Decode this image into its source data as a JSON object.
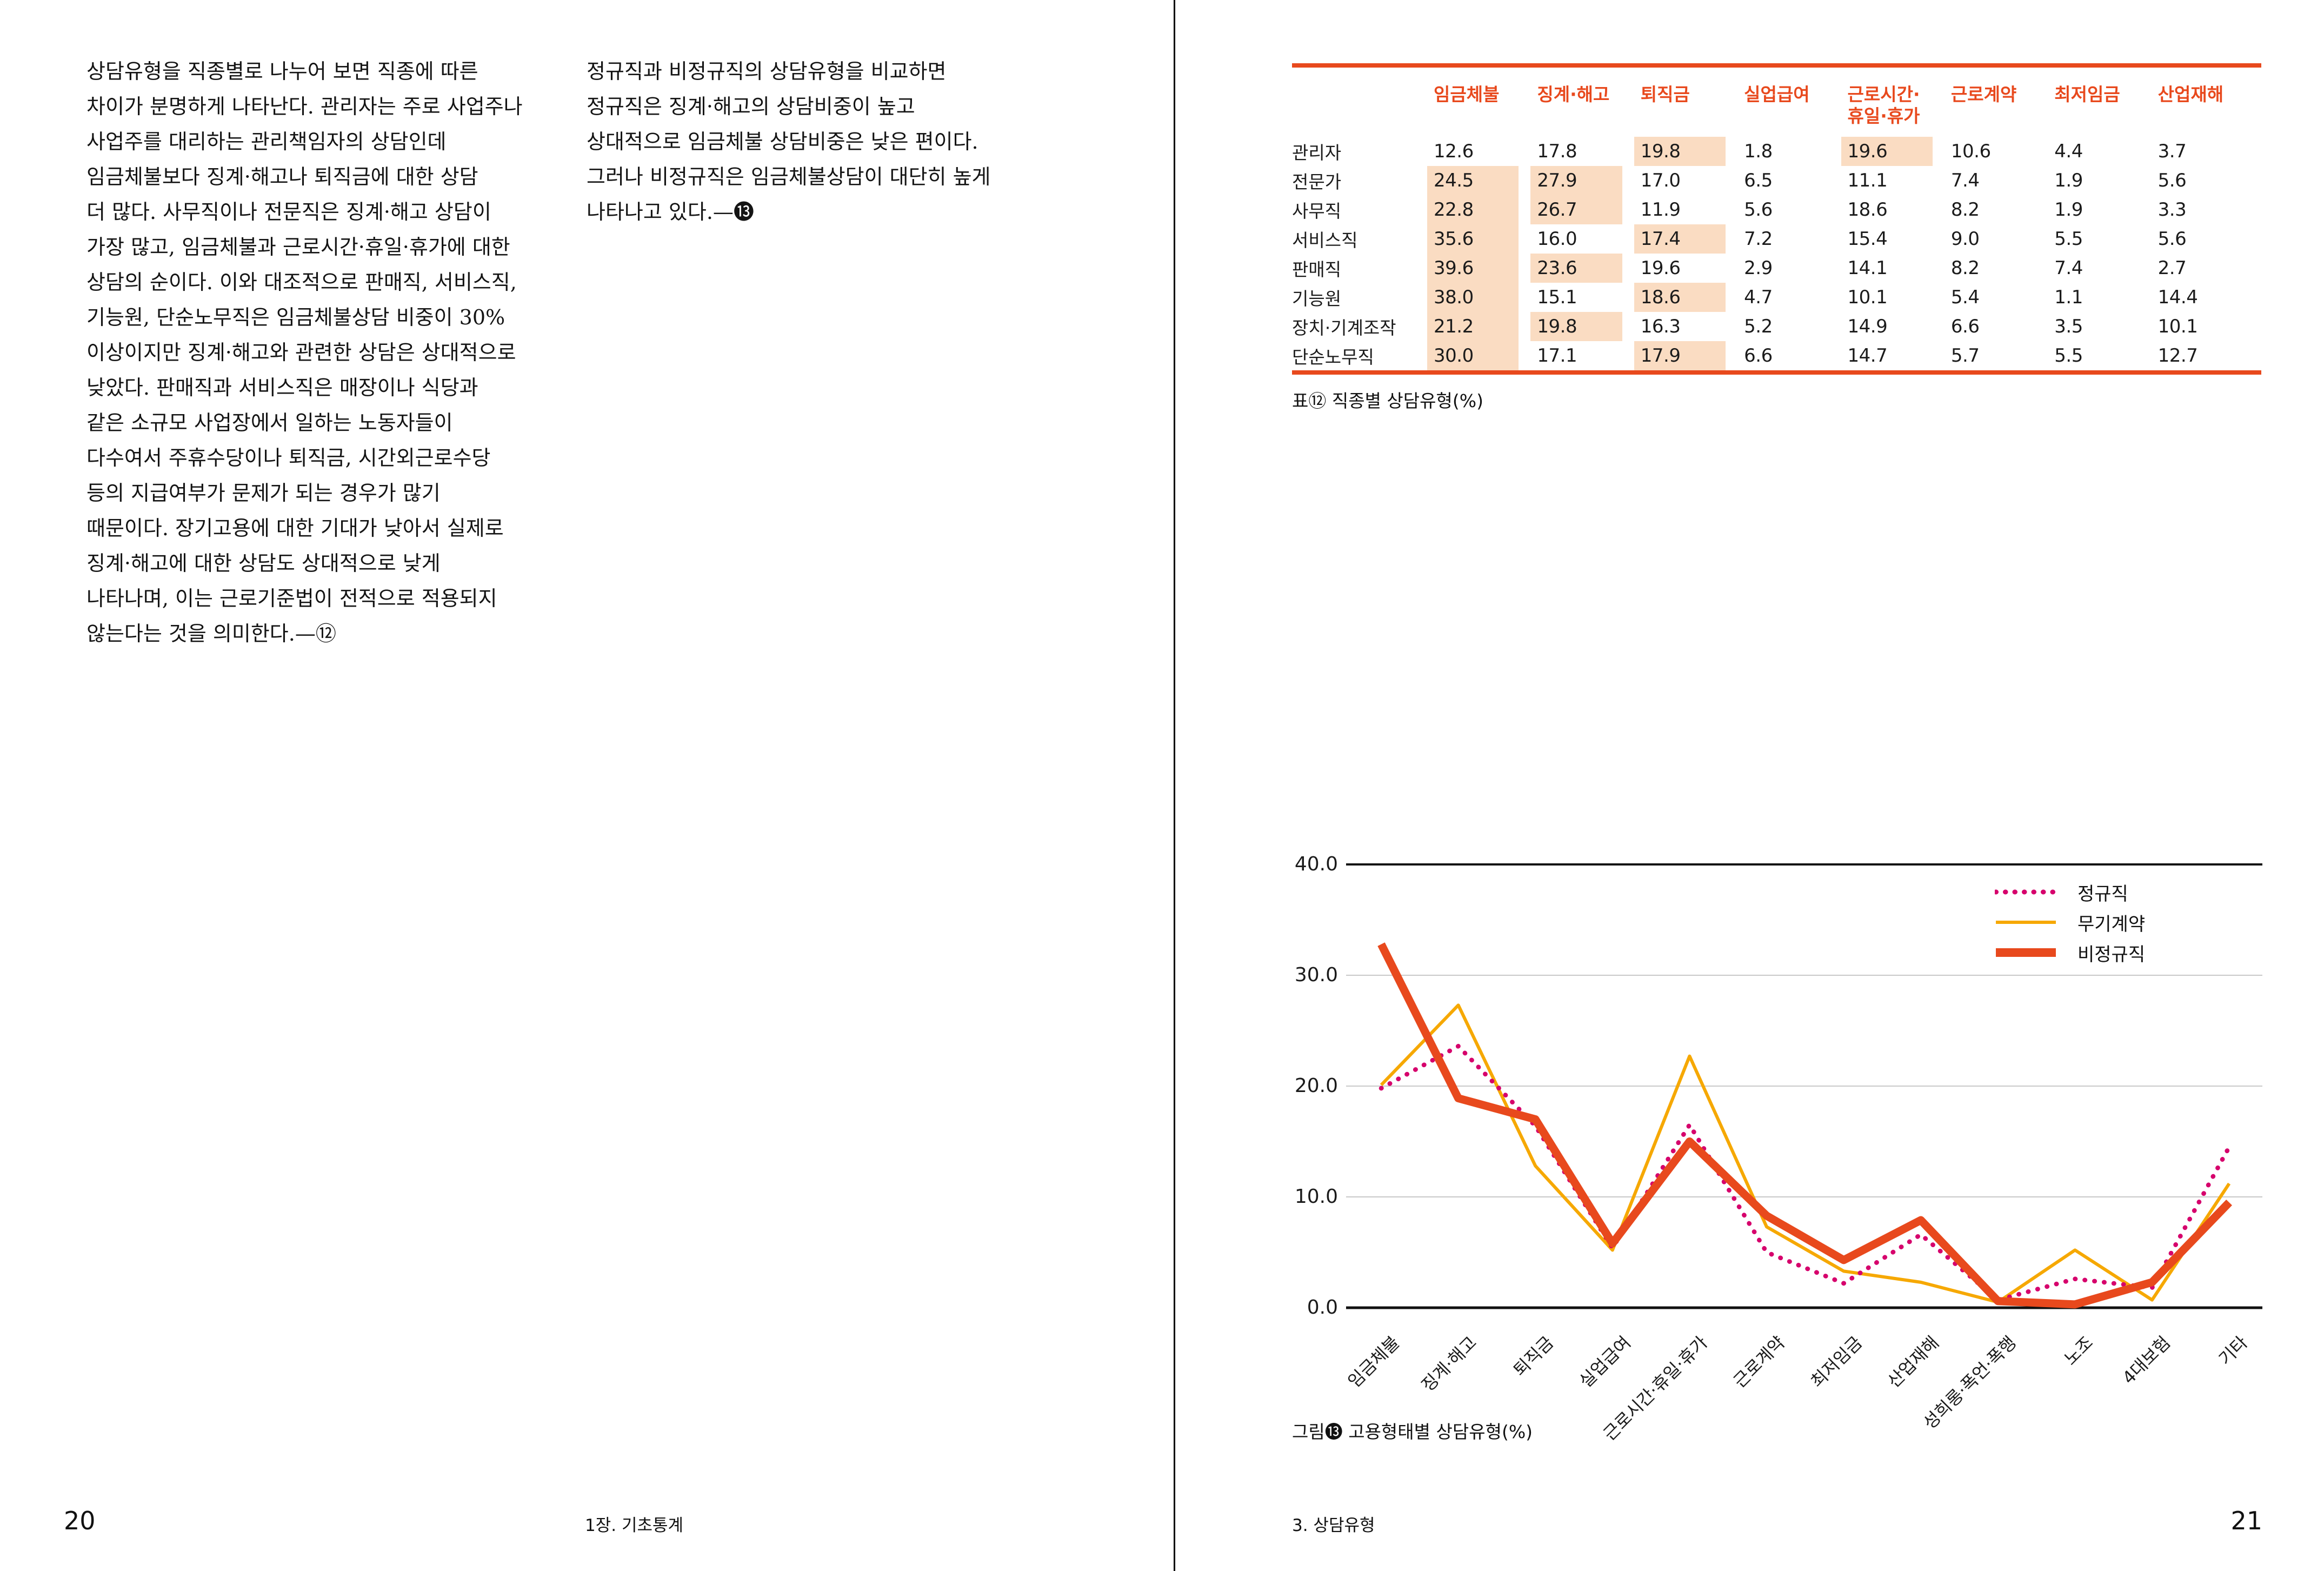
{
  "colors": {
    "accent": "#E8491D",
    "table_highlight": "#FADCC2",
    "grid_gray": "#C9C9C9",
    "axis_black": "#111111"
  },
  "page_left": {
    "page_number": "20",
    "footer": "1장. 기초통계",
    "col1_lines": [
      "상담유형을 직종별로 나누어 보면 직종에 따른",
      "차이가 분명하게 나타난다. 관리자는 주로 사업주나",
      "사업주를 대리하는 관리책임자의 상담인데",
      "임금체불보다 징계·해고나 퇴직금에 대한 상담",
      "더 많다. 사무직이나 전문직은 징계·해고 상담이",
      "가장 많고, 임금체불과 근로시간·휴일·휴가에 대한",
      "상담의 순이다. 이와 대조적으로 판매직, 서비스직,",
      "기능원, 단순노무직은 임금체불상담 비중이 30%",
      "이상이지만 징계·해고와 관련한 상담은 상대적으로",
      "낮았다. 판매직과 서비스직은 매장이나 식당과",
      "같은 소규모 사업장에서 일하는 노동자들이",
      "다수여서 주휴수당이나 퇴직금, 시간외근로수당",
      "등의 지급여부가 문제가 되는 경우가 많기",
      "때문이다. 장기고용에 대한 기대가 낮아서 실제로",
      "징계·해고에 대한 상담도 상대적으로 낮게",
      "나타나며, 이는 근로기준법이 전적으로 적용되지",
      "않는다는 것을 의미한다.—⑫"
    ],
    "col2_lines": [
      "정규직과 비정규직의 상담유형을 비교하면",
      "정규직은 징계·해고의 상담비중이 높고",
      "상대적으로 임금체불 상담비중은 낮은 편이다.",
      "그러나 비정규직은 임금체불상담이 대단히 높게",
      "나타나고 있다.—⓭"
    ]
  },
  "page_right": {
    "page_number": "21",
    "footer": "3. 상담유형",
    "table": {
      "caption": "표⑫ 직종별 상담유형(%)",
      "columns": [
        "임금체불",
        "징계·해고",
        "퇴직금",
        "실업급여",
        "근로시간·\n휴일·휴가",
        "근로계약",
        "최저임금",
        "산업재해"
      ],
      "rows": [
        {
          "label": "관리자",
          "values": [
            12.6,
            17.8,
            19.8,
            1.8,
            19.6,
            10.6,
            4.4,
            3.7
          ],
          "highlight": [
            2,
            4
          ]
        },
        {
          "label": "전문가",
          "values": [
            24.5,
            27.9,
            17.0,
            6.5,
            11.1,
            7.4,
            1.9,
            5.6
          ],
          "highlight": [
            0,
            1
          ]
        },
        {
          "label": "사무직",
          "values": [
            22.8,
            26.7,
            11.9,
            5.6,
            18.6,
            8.2,
            1.9,
            3.3
          ],
          "highlight": [
            0,
            1
          ]
        },
        {
          "label": "서비스직",
          "values": [
            35.6,
            16.0,
            17.4,
            7.2,
            15.4,
            9.0,
            5.5,
            5.6
          ],
          "highlight": [
            0,
            2
          ]
        },
        {
          "label": "판매직",
          "values": [
            39.6,
            23.6,
            19.6,
            2.9,
            14.1,
            8.2,
            7.4,
            2.7
          ],
          "highlight": [
            0,
            1
          ]
        },
        {
          "label": "기능원",
          "values": [
            38.0,
            15.1,
            18.6,
            4.7,
            10.1,
            5.4,
            1.1,
            14.4
          ],
          "highlight": [
            0,
            2
          ]
        },
        {
          "label": "장치·기계조작",
          "values": [
            21.2,
            19.8,
            16.3,
            5.2,
            14.9,
            6.6,
            3.5,
            10.1
          ],
          "highlight": [
            0,
            1
          ]
        },
        {
          "label": "단순노무직",
          "values": [
            30.0,
            17.1,
            17.9,
            6.6,
            14.7,
            5.7,
            5.5,
            12.7
          ],
          "highlight": [
            0,
            2
          ]
        }
      ]
    },
    "chart_caption": "그림⓭ 고용형태별 상담유형(%)"
  },
  "chart_data": {
    "type": "line",
    "categories": [
      "임금체불",
      "징계·해고",
      "퇴직금",
      "실업급여",
      "근로시간·휴일·휴가",
      "근로계약",
      "최저임금",
      "산업재해",
      "성희롱·폭언·폭행",
      "노조",
      "4대보험",
      "기타"
    ],
    "series": [
      {
        "name": "정규직",
        "style": "dotted",
        "color": "#D6006C",
        "values": [
          19.8,
          23.6,
          16.4,
          5.4,
          16.5,
          5.0,
          2.2,
          6.6,
          0.7,
          2.6,
          1.8,
          14.5
        ]
      },
      {
        "name": "무기계약",
        "style": "solid",
        "color": "#F6A800",
        "values": [
          20.1,
          27.3,
          12.8,
          5.2,
          22.7,
          7.3,
          3.3,
          2.3,
          0.5,
          5.2,
          0.7,
          11.2
        ]
      },
      {
        "name": "비정규직",
        "style": "solid-thick",
        "color": "#E8491D",
        "values": [
          32.8,
          18.9,
          17.0,
          5.8,
          15.0,
          8.3,
          4.3,
          7.9,
          0.6,
          0.3,
          2.3,
          9.5
        ]
      }
    ],
    "ylim": [
      0,
      40
    ],
    "yticks": [
      40,
      30,
      20,
      10,
      0
    ],
    "ytick_labels": [
      "40.0",
      "30.0",
      "20.0",
      "10.0",
      "0.0"
    ],
    "grid": "horizontal",
    "legend_position": "top-right"
  }
}
